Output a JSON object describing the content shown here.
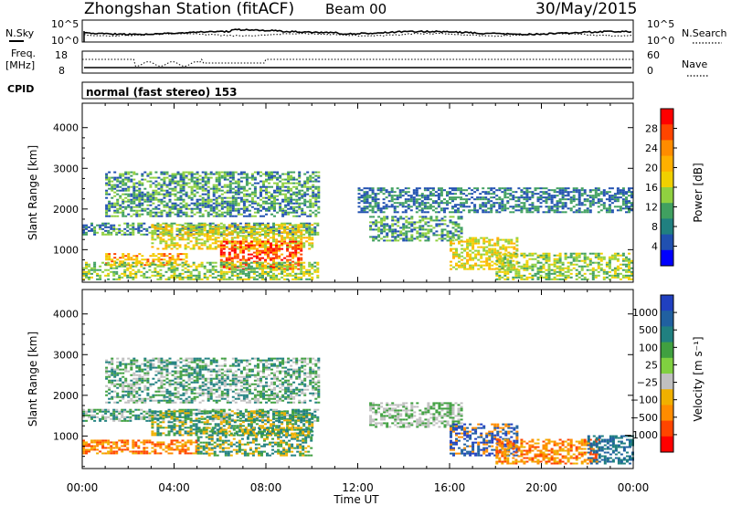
{
  "header": {
    "title": "Zhongshan Station (fitACF)",
    "beam": "Beam 00",
    "date": "30/May/2015"
  },
  "nsky_panel": {
    "left_label": "N.Sky",
    "right_label": "N.Search",
    "left_ticks": [
      "10^5",
      "10^0"
    ],
    "right_ticks": [
      "10^5",
      "10^0"
    ]
  },
  "freq_panel": {
    "label_line1": "Freq.",
    "label_line2": "[MHz]",
    "left_ticks": [
      "18",
      "8"
    ],
    "right_ticks": [
      "60",
      "0"
    ],
    "right_label": "Nave"
  },
  "cpid_panel": {
    "label": "CPID",
    "text": "normal (fast stereo) 153"
  },
  "x_axis": {
    "label": "Time UT",
    "ticks": [
      "00:00",
      "04:00",
      "08:00",
      "12:00",
      "16:00",
      "20:00",
      "00:00"
    ]
  },
  "chart_data": [
    {
      "type": "heatmap",
      "name": "power",
      "ylabel": "Slant Range [km]",
      "yticks": [
        "1000",
        "2000",
        "3000",
        "4000"
      ],
      "ylim": [
        200,
        4600
      ],
      "xlim_hours": [
        0,
        24
      ],
      "colorbar": {
        "label": "Power [dB]",
        "ticks": [
          "28",
          "24",
          "20",
          "16",
          "12",
          "8",
          "4"
        ],
        "colors": [
          "#ff0000",
          "#ff4500",
          "#ff8c00",
          "#ffb000",
          "#f0d000",
          "#90d040",
          "#40a060",
          "#208080",
          "#2050b0",
          "#0000ff"
        ]
      },
      "regions": [
        {
          "t0": 0.0,
          "t1": 10.3,
          "r0": 1350,
          "r1": 1650,
          "levels": [
            8,
            12,
            4
          ]
        },
        {
          "t0": 1.0,
          "t1": 10.3,
          "r0": 1800,
          "r1": 2900,
          "levels": [
            8,
            4,
            12
          ]
        },
        {
          "t0": 3.0,
          "t1": 10.0,
          "r0": 1000,
          "r1": 1600,
          "levels": [
            12,
            16,
            20
          ]
        },
        {
          "t0": 1.0,
          "t1": 4.5,
          "r0": 600,
          "r1": 900,
          "levels": [
            16,
            20,
            24
          ]
        },
        {
          "t0": 6.0,
          "t1": 9.5,
          "r0": 500,
          "r1": 1200,
          "levels": [
            20,
            24,
            28
          ]
        },
        {
          "t0": 0.0,
          "t1": 10.3,
          "r0": 250,
          "r1": 700,
          "levels": [
            12,
            8,
            16
          ]
        },
        {
          "t0": 12.5,
          "t1": 16.5,
          "r0": 1200,
          "r1": 1800,
          "levels": [
            8,
            4,
            12
          ]
        },
        {
          "t0": 16.0,
          "t1": 19.0,
          "r0": 500,
          "r1": 1300,
          "levels": [
            16,
            20,
            12
          ]
        },
        {
          "t0": 18.0,
          "t1": 24.0,
          "r0": 250,
          "r1": 900,
          "levels": [
            8,
            12,
            16
          ]
        },
        {
          "t0": 12.0,
          "t1": 24.0,
          "r0": 1900,
          "r1": 2500,
          "levels": [
            4,
            8
          ]
        }
      ]
    },
    {
      "type": "heatmap",
      "name": "velocity",
      "ylabel": "Slant Range [km]",
      "yticks": [
        "1000",
        "2000",
        "3000",
        "4000"
      ],
      "ylim": [
        200,
        4600
      ],
      "xlim_hours": [
        0,
        24
      ],
      "colorbar": {
        "label": "Velocity [m s⁻¹]",
        "ticks": [
          "1000",
          "500",
          "100",
          "25",
          "−25",
          "−100",
          "−500",
          "−1000"
        ],
        "colors": [
          "#2040c0",
          "#2060a0",
          "#208080",
          "#40a040",
          "#80d040",
          "#c0c0c0",
          "#f0b000",
          "#ff8c00",
          "#ff4500",
          "#ff0000"
        ]
      },
      "regions": [
        {
          "t0": 0.0,
          "t1": 10.3,
          "r0": 1350,
          "r1": 1650,
          "levels": [
            25,
            -25,
            100
          ]
        },
        {
          "t0": 1.0,
          "t1": 10.3,
          "r0": 1800,
          "r1": 2900,
          "levels": [
            25,
            100,
            -25
          ]
        },
        {
          "t0": 3.0,
          "t1": 10.0,
          "r0": 1000,
          "r1": 1600,
          "levels": [
            25,
            100,
            -100
          ]
        },
        {
          "t0": 0.0,
          "t1": 5.0,
          "r0": 550,
          "r1": 900,
          "levels": [
            -500,
            -100,
            -1000
          ]
        },
        {
          "t0": 5.0,
          "t1": 10.0,
          "r0": 500,
          "r1": 1200,
          "levels": [
            -100,
            25,
            100
          ]
        },
        {
          "t0": 12.5,
          "t1": 16.5,
          "r0": 1200,
          "r1": 1800,
          "levels": [
            25,
            -25
          ]
        },
        {
          "t0": 16.0,
          "t1": 19.0,
          "r0": 500,
          "r1": 1300,
          "levels": [
            500,
            1000,
            -500
          ]
        },
        {
          "t0": 18.0,
          "t1": 22.5,
          "r0": 300,
          "r1": 900,
          "levels": [
            -500,
            -100,
            -1000
          ]
        },
        {
          "t0": 22.0,
          "t1": 24.0,
          "r0": 300,
          "r1": 1000,
          "levels": [
            500,
            100
          ]
        }
      ]
    }
  ]
}
